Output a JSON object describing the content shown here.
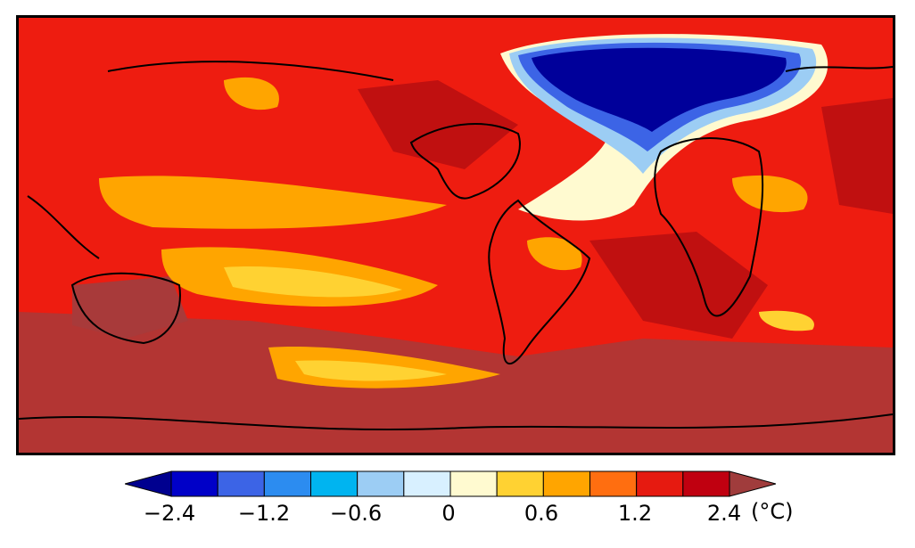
{
  "map": {
    "projection": "equirectangular",
    "field": "surface temperature change",
    "features": [
      "strong cooling over the North Atlantic / Greenland",
      "warming elsewhere, strongest over high latitudes and Antarctica"
    ]
  },
  "colorbar": {
    "unit_label": "(°C)",
    "tick_labels": [
      "−2.4",
      "−1.2",
      "−0.6",
      "0",
      "0.6",
      "1.2",
      "2.4"
    ],
    "colors": [
      "#00008f",
      "#0000c8",
      "#3c64e6",
      "#2c8cf0",
      "#00b4f0",
      "#9ccdf4",
      "#d8f0ff",
      "#fffad0",
      "#ffd232",
      "#ffa500",
      "#ff6e10",
      "#e61a10",
      "#c00010",
      "#a03c3c"
    ]
  }
}
